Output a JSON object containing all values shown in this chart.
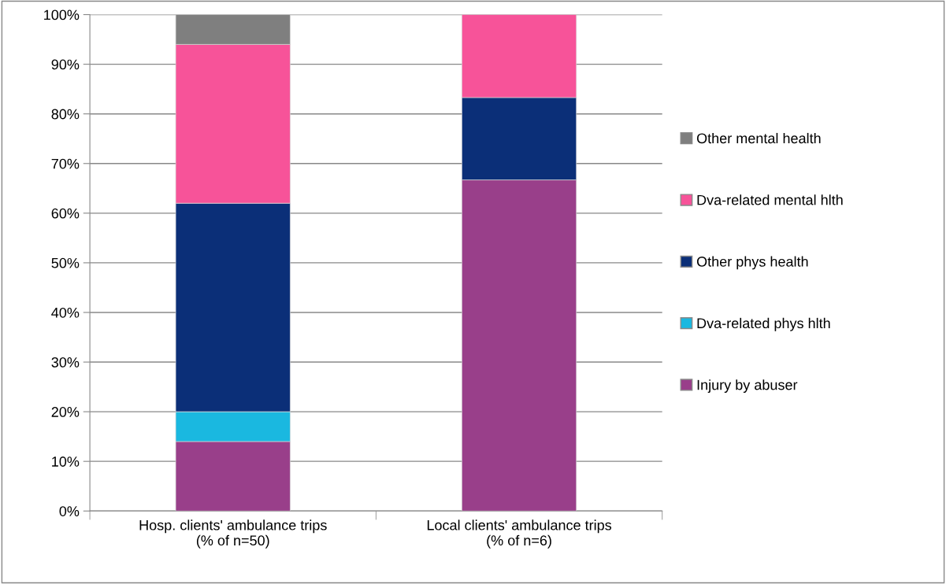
{
  "chart_data": {
    "type": "bar",
    "stacked": true,
    "categories": [
      "Hosp. clients' ambulance trips\n(% of n=50)",
      "Local clients' ambulance trips\n(% of n=6)"
    ],
    "series": [
      {
        "name": "Injury by abuser",
        "color": "#993f8a",
        "values": [
          14,
          66.7
        ]
      },
      {
        "name": "Dva-related phys hlth",
        "color": "#1ab8e0",
        "values": [
          6,
          null
        ]
      },
      {
        "name": "Other phys health",
        "color": "#0b2f78",
        "values": [
          42,
          16.6
        ]
      },
      {
        "name": "Dva-related mental hlth",
        "color": "#f75399",
        "values": [
          32,
          16.7
        ]
      },
      {
        "name": "Other mental health",
        "color": "#7f7f7f",
        "values": [
          6,
          null
        ]
      }
    ],
    "ylim": [
      0,
      100
    ],
    "yticks": [
      {
        "value": 0,
        "label": "0%"
      },
      {
        "value": 10,
        "label": "10%"
      },
      {
        "value": 20,
        "label": "20%"
      },
      {
        "value": 30,
        "label": "30%"
      },
      {
        "value": 40,
        "label": "40%"
      },
      {
        "value": 50,
        "label": "50%"
      },
      {
        "value": 60,
        "label": "60%"
      },
      {
        "value": 70,
        "label": "70%"
      },
      {
        "value": 80,
        "label": "80%"
      },
      {
        "value": 90,
        "label": "90%"
      },
      {
        "value": 100,
        "label": "100%"
      }
    ],
    "grid": "y",
    "legend": "right"
  }
}
